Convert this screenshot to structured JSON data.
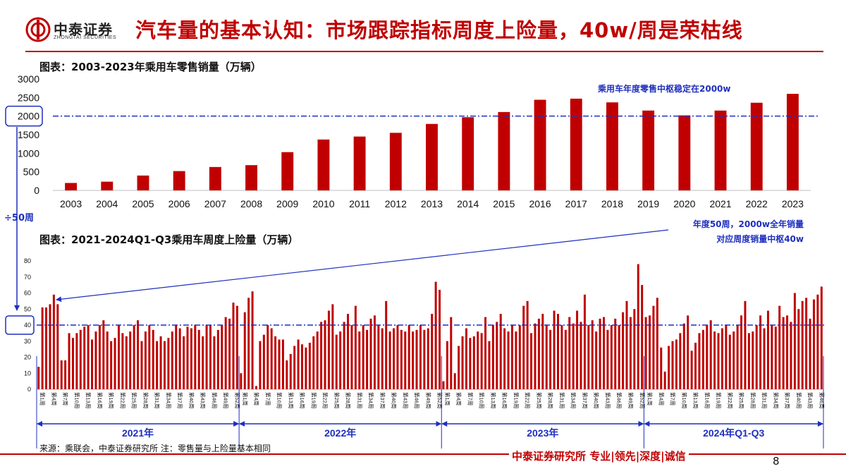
{
  "header": {
    "logo_name": "中泰证券",
    "logo_sub": "ZHONGTAI SECURITIES",
    "title": "汽车量的基本认知：市场跟踪指标周度上险量，40w/周是荣枯线"
  },
  "chart1_caption": "图表：2003-2023年乘用车零售销量（万辆）",
  "chart2_caption": "图表：2021-2024Q1-Q3乘用车周度上险量（万辆）",
  "annotations": {
    "annual_note": "乘用车年度零售中枢稳定在2000w",
    "divide_note": "÷50周",
    "weekly_note_line1": "年度50周，2000w全年销量",
    "weekly_note_line2": "对应周度销量中枢40w"
  },
  "year_labels": [
    "2021年",
    "2022年",
    "2023年",
    "2024年Q1-Q3"
  ],
  "footer": {
    "source": "来源：乘联会，中泰证券研究所    注：零售量与上险量基本相同",
    "brand": "中泰证券研究所 专业|领先|深度|诚信",
    "page": "8"
  },
  "colors": {
    "bar": "#c00000",
    "accent": "#1f2fbf"
  },
  "chart_data": [
    {
      "type": "bar",
      "title": "图表：2003-2023年乘用车零售销量（万辆）",
      "categories": [
        "2003",
        "2004",
        "2005",
        "2006",
        "2007",
        "2008",
        "2009",
        "2010",
        "2011",
        "2012",
        "2013",
        "2014",
        "2015",
        "2016",
        "2017",
        "2018",
        "2019",
        "2020",
        "2021",
        "2022",
        "2023"
      ],
      "values": [
        200,
        235,
        400,
        520,
        630,
        680,
        1030,
        1370,
        1450,
        1550,
        1790,
        1970,
        2110,
        2440,
        2470,
        2370,
        2150,
        2020,
        2150,
        2360,
        2600
      ],
      "yticks": [
        0,
        500,
        1000,
        1500,
        2000,
        2500,
        3000
      ],
      "ylim": [
        0,
        3000
      ],
      "reference_line": 2000,
      "reference_label": "2000"
    },
    {
      "type": "bar",
      "title": "图表：2021-2024Q1-Q3乘用车周度上险量（万辆）",
      "x_label_template": "第{n}周",
      "groups": [
        {
          "name": "2021年",
          "values": [
            14,
            51,
            51,
            53,
            59,
            53,
            18,
            18,
            35,
            32,
            35,
            37,
            39,
            40,
            31,
            36,
            40,
            43,
            36,
            30,
            32,
            40,
            35,
            33,
            36,
            40,
            43,
            30,
            36,
            40,
            37,
            30,
            33,
            30,
            32,
            36,
            40,
            38,
            33,
            39,
            38,
            40,
            37,
            33,
            40,
            40,
            33,
            37,
            40,
            45,
            44,
            54,
            52
          ]
        },
        {
          "name": "2022年",
          "values": [
            10,
            48,
            57,
            61,
            2,
            30,
            34,
            40,
            38,
            33,
            31,
            31,
            18,
            22,
            27,
            31,
            28,
            26,
            29,
            33,
            36,
            42,
            43,
            49,
            53,
            34,
            36,
            42,
            47,
            40,
            52,
            36,
            40,
            37,
            44,
            46,
            40,
            38,
            55,
            36,
            38,
            40,
            37,
            36,
            40,
            36,
            37,
            40,
            37,
            38,
            47,
            67,
            62
          ]
        },
        {
          "name": "2023年",
          "values": [
            5,
            30,
            45,
            10,
            27,
            33,
            38,
            32,
            33,
            36,
            35,
            45,
            30,
            40,
            42,
            47,
            38,
            36,
            40,
            36,
            40,
            52,
            55,
            35,
            41,
            44,
            47,
            40,
            37,
            49,
            47,
            40,
            37,
            45,
            41,
            49,
            42,
            59,
            40,
            43,
            36,
            44,
            45,
            37,
            40,
            44,
            40,
            48,
            55,
            45,
            50,
            78,
            65
          ]
        },
        {
          "name": "2024年Q1-Q3",
          "values": [
            45,
            46,
            52,
            57,
            26,
            11,
            27,
            30,
            31,
            35,
            41,
            46,
            24,
            29,
            35,
            37,
            40,
            43,
            36,
            35,
            38,
            40,
            34,
            36,
            40,
            46,
            55,
            35,
            36,
            40,
            46,
            38,
            49,
            40,
            39,
            52,
            45,
            46,
            42,
            60,
            50,
            55,
            57,
            44,
            56,
            59,
            64
          ]
        }
      ],
      "yticks": [
        0,
        10,
        20,
        30,
        40,
        50,
        60,
        70,
        80
      ],
      "ylim": [
        0,
        80
      ],
      "reference_line": 40,
      "reference_label": "40"
    }
  ]
}
